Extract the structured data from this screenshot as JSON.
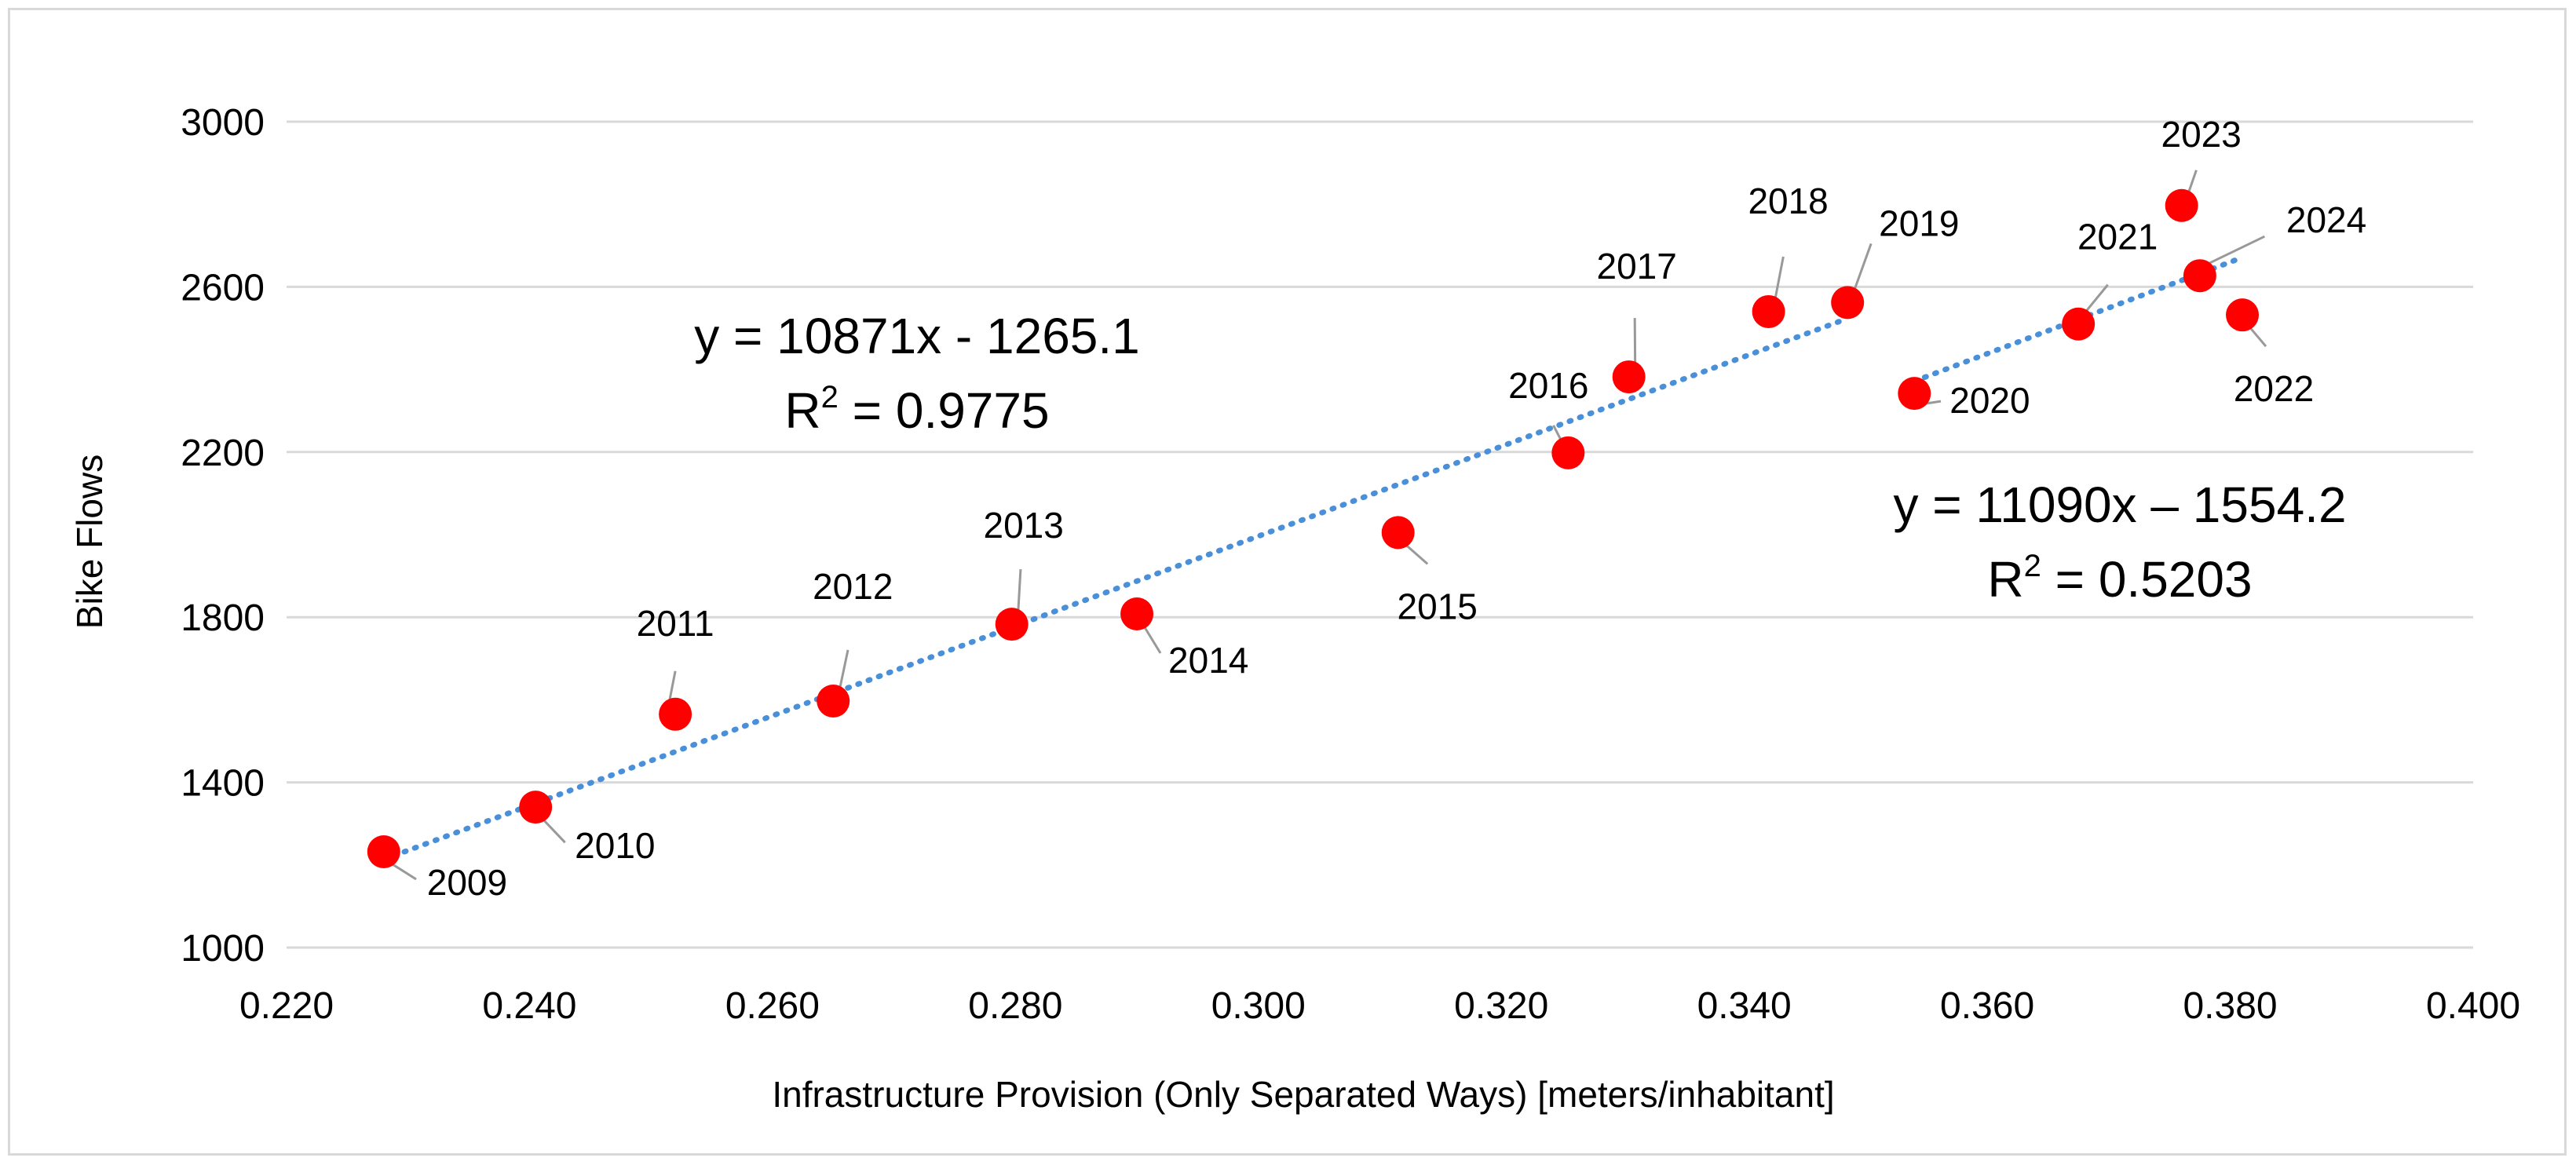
{
  "chart_data": {
    "type": "scatter",
    "xlabel": "Infrastructure Provision (Only Separated Ways) [meters/inhabitant]",
    "ylabel": "Bike Flows",
    "xlim": [
      0.22,
      0.4
    ],
    "ylim": [
      1000,
      3000
    ],
    "x_ticks": [
      "0.220",
      "0.240",
      "0.260",
      "0.280",
      "0.300",
      "0.320",
      "0.340",
      "0.360",
      "0.380",
      "0.400"
    ],
    "y_ticks": [
      "1000",
      "1400",
      "1800",
      "2200",
      "2600",
      "3000"
    ],
    "grid": "horizontal",
    "point_color": "#ff0000",
    "trendline_color": "#4a90d9",
    "points": [
      {
        "label": "2009",
        "x": 0.228,
        "y": 1232
      },
      {
        "label": "2010",
        "x": 0.2405,
        "y": 1340
      },
      {
        "label": "2011",
        "x": 0.252,
        "y": 1565
      },
      {
        "label": "2012",
        "x": 0.265,
        "y": 1597
      },
      {
        "label": "2013",
        "x": 0.2797,
        "y": 1783
      },
      {
        "label": "2014",
        "x": 0.29,
        "y": 1808
      },
      {
        "label": "2015",
        "x": 0.3115,
        "y": 2005
      },
      {
        "label": "2016",
        "x": 0.3255,
        "y": 2198
      },
      {
        "label": "2017",
        "x": 0.3305,
        "y": 2382
      },
      {
        "label": "2018",
        "x": 0.342,
        "y": 2540
      },
      {
        "label": "2019",
        "x": 0.3485,
        "y": 2562
      },
      {
        "label": "2020",
        "x": 0.354,
        "y": 2342
      },
      {
        "label": "2021",
        "x": 0.3675,
        "y": 2510
      },
      {
        "label": "2022",
        "x": 0.381,
        "y": 2532
      },
      {
        "label": "2023",
        "x": 0.376,
        "y": 2797
      },
      {
        "label": "2024",
        "x": 0.3775,
        "y": 2627
      }
    ],
    "trendlines": [
      {
        "slope": 10871,
        "intercept": -1265.1,
        "x_range": [
          0.228,
          0.3485
        ],
        "equation": "y = 10871x - 1265.1",
        "r2_prefix": "R",
        "r2_value": " = 0.9775"
      },
      {
        "slope": 11090,
        "intercept": -1554.2,
        "x_range": [
          0.354,
          0.381
        ],
        "equation": "y = 11090x – 1554.2",
        "r2_prefix": "R",
        "r2_value": " = 0.5203"
      }
    ]
  }
}
